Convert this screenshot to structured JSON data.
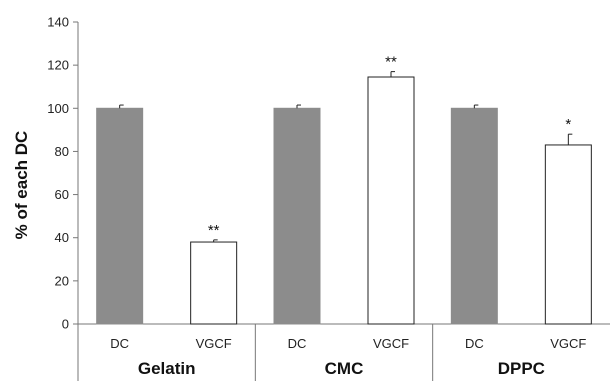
{
  "chart_data": {
    "type": "bar",
    "ylabel": "% of each DC",
    "ylim": [
      0,
      140
    ],
    "yticks": [
      0,
      20,
      40,
      60,
      80,
      100,
      120,
      140
    ],
    "grid": false,
    "groups": [
      "Gelatin",
      "CMC",
      "DPPC"
    ],
    "bar_labels": [
      "DC",
      "VGCF"
    ],
    "bars": [
      {
        "group": "Gelatin",
        "label": "DC",
        "value": 100,
        "error": 1.5,
        "fill": "#8c8c8c",
        "sig": ""
      },
      {
        "group": "Gelatin",
        "label": "VGCF",
        "value": 38,
        "error": 1,
        "fill": "#ffffff",
        "sig": "**"
      },
      {
        "group": "CMC",
        "label": "DC",
        "value": 100,
        "error": 1.5,
        "fill": "#8c8c8c",
        "sig": ""
      },
      {
        "group": "CMC",
        "label": "VGCF",
        "value": 114.5,
        "error": 2.5,
        "fill": "#ffffff",
        "sig": "**"
      },
      {
        "group": "DPPC",
        "label": "DC",
        "value": 100,
        "error": 1.5,
        "fill": "#8c8c8c",
        "sig": ""
      },
      {
        "group": "DPPC",
        "label": "VGCF",
        "value": 83,
        "error": 5,
        "fill": "#ffffff",
        "sig": "*"
      }
    ]
  }
}
